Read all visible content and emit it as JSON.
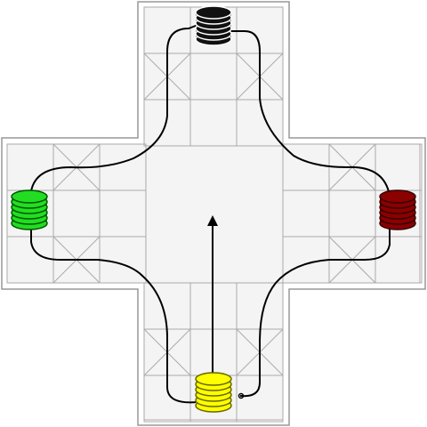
{
  "game": {
    "board_type": "cross-and-circle race board",
    "colors": {
      "board_fill": "#f2f2f2",
      "board_border": "#aaaaaa",
      "grid_line": "#aaaaaa",
      "path_line": "#000000",
      "arrow": "#000000"
    },
    "arms": [
      "top",
      "left",
      "right",
      "bottom"
    ],
    "players": [
      {
        "id": "black",
        "color": "#111111",
        "stroke": "#ffffff",
        "stack_size": 5,
        "position": "top-home"
      },
      {
        "id": "green",
        "color": "#22dd22",
        "stroke": "#005500",
        "stack_size": 5,
        "position": "left-home"
      },
      {
        "id": "maroon",
        "color": "#8b0000",
        "stroke": "#330000",
        "stack_size": 5,
        "position": "right-home"
      },
      {
        "id": "yellow",
        "color": "#ffff00",
        "stroke": "#666600",
        "stack_size": 5,
        "position": "bottom-home"
      }
    ],
    "center_arrow": {
      "direction": "up",
      "from": "bottom-home",
      "to": "center"
    }
  }
}
